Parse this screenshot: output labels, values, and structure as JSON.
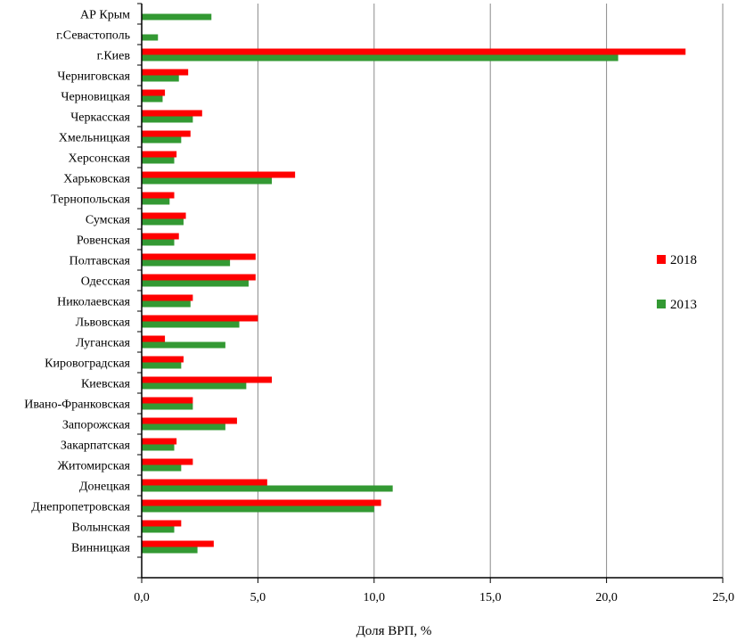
{
  "chart_data": {
    "type": "bar",
    "orientation": "horizontal",
    "title": "",
    "xlabel": "Доля ВРП, %",
    "ylabel": "",
    "xlim": [
      0,
      25
    ],
    "xticks": [
      0,
      5,
      10,
      15,
      20,
      25
    ],
    "xtick_labels": [
      "0,0",
      "5,0",
      "10,0",
      "15,0",
      "20,0",
      "25,0"
    ],
    "grid": "vertical major gridlines",
    "legend_position": "right",
    "categories": [
      "АР Крым",
      "г.Севастополь",
      "г.Киев",
      "Черниговская",
      "Черновицкая",
      "Черкасская",
      "Хмельницкая",
      "Херсонская",
      "Харьковская",
      "Тернопольская",
      "Сумская",
      "Ровенская",
      "Полтавская",
      "Одесская",
      "Николаевская",
      "Львовская",
      "Луганская",
      "Кировоградская",
      "Киевская",
      "Ивано-Франковская",
      "Запорожская",
      "Закарпатская",
      "Житомирская",
      "Донецкая",
      "Днепропетровская",
      "Волынская",
      "Винницкая"
    ],
    "series": [
      {
        "name": "2018",
        "color": "#ff0000",
        "values": [
          null,
          null,
          23.4,
          2.0,
          1.0,
          2.6,
          2.1,
          1.5,
          6.6,
          1.4,
          1.9,
          1.6,
          4.9,
          4.9,
          2.2,
          5.0,
          1.0,
          1.8,
          5.6,
          2.2,
          4.1,
          1.5,
          2.2,
          5.4,
          10.3,
          1.7,
          3.1
        ]
      },
      {
        "name": "2013",
        "color": "#339933",
        "values": [
          3.0,
          0.7,
          20.5,
          1.6,
          0.9,
          2.2,
          1.7,
          1.4,
          5.6,
          1.2,
          1.8,
          1.4,
          3.8,
          4.6,
          2.1,
          4.2,
          3.6,
          1.7,
          4.5,
          2.2,
          3.6,
          1.4,
          1.7,
          10.8,
          10.0,
          1.4,
          2.4
        ]
      }
    ]
  }
}
